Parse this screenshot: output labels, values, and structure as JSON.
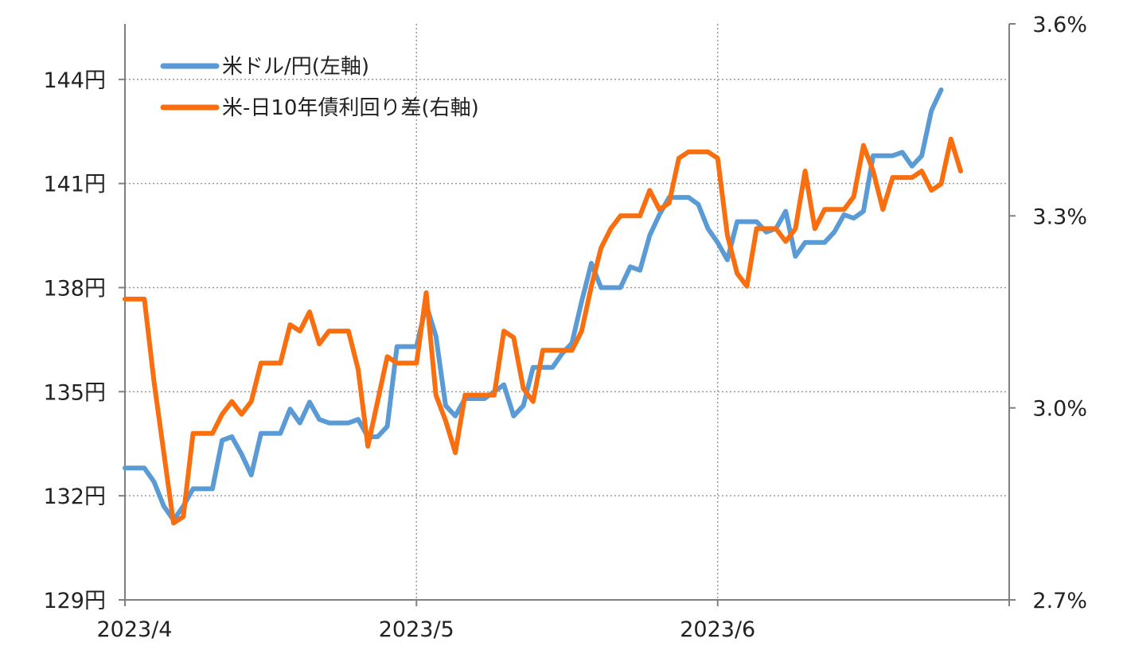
{
  "chart_data": {
    "type": "line",
    "x_ticks": [
      "2023/4",
      "2023/5",
      "2023/6"
    ],
    "x_tick_dates": [
      "2023-04-01",
      "2023-05-01",
      "2023-06-01"
    ],
    "x_range": [
      "2023-04-01",
      "2023-07-01"
    ],
    "y_left": {
      "ticks": [
        129,
        132,
        135,
        138,
        141,
        144
      ],
      "tick_labels": [
        "129円",
        "132円",
        "135円",
        "138円",
        "141円",
        "144円"
      ],
      "range": [
        129,
        145.6
      ]
    },
    "y_right": {
      "ticks": [
        2.7,
        3.0,
        3.3,
        3.6
      ],
      "tick_labels": [
        "2.7%",
        "3.0%",
        "3.3%",
        "3.6%"
      ],
      "range": [
        2.7,
        3.6
      ]
    },
    "grid": true,
    "legend_position": "top-left",
    "series": [
      {
        "name": "米ドル/円(左軸)",
        "axis": "left",
        "color": "#5B9BD5",
        "points": [
          [
            "2023-04-01",
            132.8
          ],
          [
            "2023-04-02",
            132.8
          ],
          [
            "2023-04-03",
            132.8
          ],
          [
            "2023-04-04",
            132.4
          ],
          [
            "2023-04-05",
            131.7
          ],
          [
            "2023-04-06",
            131.3
          ],
          [
            "2023-04-07",
            131.7
          ],
          [
            "2023-04-08",
            132.2
          ],
          [
            "2023-04-09",
            132.2
          ],
          [
            "2023-04-10",
            132.2
          ],
          [
            "2023-04-11",
            133.6
          ],
          [
            "2023-04-12",
            133.7
          ],
          [
            "2023-04-13",
            133.2
          ],
          [
            "2023-04-14",
            132.6
          ],
          [
            "2023-04-15",
            133.8
          ],
          [
            "2023-04-16",
            133.8
          ],
          [
            "2023-04-17",
            133.8
          ],
          [
            "2023-04-18",
            134.5
          ],
          [
            "2023-04-19",
            134.1
          ],
          [
            "2023-04-20",
            134.7
          ],
          [
            "2023-04-21",
            134.2
          ],
          [
            "2023-04-22",
            134.1
          ],
          [
            "2023-04-23",
            134.1
          ],
          [
            "2023-04-24",
            134.1
          ],
          [
            "2023-04-25",
            134.2
          ],
          [
            "2023-04-26",
            133.7
          ],
          [
            "2023-04-27",
            133.7
          ],
          [
            "2023-04-28",
            134.0
          ],
          [
            "2023-04-29",
            136.3
          ],
          [
            "2023-04-30",
            136.3
          ],
          [
            "2023-05-01",
            136.3
          ],
          [
            "2023-05-02",
            137.5
          ],
          [
            "2023-05-03",
            136.6
          ],
          [
            "2023-05-04",
            134.6
          ],
          [
            "2023-05-05",
            134.3
          ],
          [
            "2023-05-06",
            134.8
          ],
          [
            "2023-05-07",
            134.8
          ],
          [
            "2023-05-08",
            134.8
          ],
          [
            "2023-05-09",
            135.0
          ],
          [
            "2023-05-10",
            135.2
          ],
          [
            "2023-05-11",
            134.3
          ],
          [
            "2023-05-12",
            134.6
          ],
          [
            "2023-05-13",
            135.7
          ],
          [
            "2023-05-14",
            135.7
          ],
          [
            "2023-05-15",
            135.7
          ],
          [
            "2023-05-16",
            136.1
          ],
          [
            "2023-05-17",
            136.4
          ],
          [
            "2023-05-18",
            137.6
          ],
          [
            "2023-05-19",
            138.7
          ],
          [
            "2023-05-20",
            138.0
          ],
          [
            "2023-05-21",
            138.0
          ],
          [
            "2023-05-22",
            138.0
          ],
          [
            "2023-05-23",
            138.6
          ],
          [
            "2023-05-24",
            138.5
          ],
          [
            "2023-05-25",
            139.5
          ],
          [
            "2023-05-26",
            140.1
          ],
          [
            "2023-05-27",
            140.6
          ],
          [
            "2023-05-28",
            140.6
          ],
          [
            "2023-05-29",
            140.6
          ],
          [
            "2023-05-30",
            140.4
          ],
          [
            "2023-05-31",
            139.7
          ],
          [
            "2023-06-01",
            139.3
          ],
          [
            "2023-06-02",
            138.8
          ],
          [
            "2023-06-03",
            139.9
          ],
          [
            "2023-06-04",
            139.9
          ],
          [
            "2023-06-05",
            139.9
          ],
          [
            "2023-06-06",
            139.6
          ],
          [
            "2023-06-07",
            139.7
          ],
          [
            "2023-06-08",
            140.2
          ],
          [
            "2023-06-09",
            138.9
          ],
          [
            "2023-06-10",
            139.3
          ],
          [
            "2023-06-11",
            139.3
          ],
          [
            "2023-06-12",
            139.3
          ],
          [
            "2023-06-13",
            139.6
          ],
          [
            "2023-06-14",
            140.1
          ],
          [
            "2023-06-15",
            140.0
          ],
          [
            "2023-06-16",
            140.2
          ],
          [
            "2023-06-17",
            141.8
          ],
          [
            "2023-06-18",
            141.8
          ],
          [
            "2023-06-19",
            141.8
          ],
          [
            "2023-06-20",
            141.9
          ],
          [
            "2023-06-21",
            141.5
          ],
          [
            "2023-06-22",
            141.8
          ],
          [
            "2023-06-23",
            143.1
          ],
          [
            "2023-06-24",
            143.7
          ]
        ]
      },
      {
        "name": "米-日10年債利回り差(右軸)",
        "axis": "right",
        "color": "#F96E0F",
        "points": [
          [
            "2023-04-01",
            3.17
          ],
          [
            "2023-04-02",
            3.17
          ],
          [
            "2023-04-03",
            3.17
          ],
          [
            "2023-04-04",
            3.04
          ],
          [
            "2023-04-05",
            2.93
          ],
          [
            "2023-04-06",
            2.82
          ],
          [
            "2023-04-07",
            2.83
          ],
          [
            "2023-04-08",
            2.96
          ],
          [
            "2023-04-09",
            2.96
          ],
          [
            "2023-04-10",
            2.96
          ],
          [
            "2023-04-11",
            2.99
          ],
          [
            "2023-04-12",
            3.01
          ],
          [
            "2023-04-13",
            2.99
          ],
          [
            "2023-04-14",
            3.01
          ],
          [
            "2023-04-15",
            3.07
          ],
          [
            "2023-04-16",
            3.07
          ],
          [
            "2023-04-17",
            3.07
          ],
          [
            "2023-04-18",
            3.13
          ],
          [
            "2023-04-19",
            3.12
          ],
          [
            "2023-04-20",
            3.15
          ],
          [
            "2023-04-21",
            3.1
          ],
          [
            "2023-04-22",
            3.12
          ],
          [
            "2023-04-23",
            3.12
          ],
          [
            "2023-04-24",
            3.12
          ],
          [
            "2023-04-25",
            3.06
          ],
          [
            "2023-04-26",
            2.94
          ],
          [
            "2023-04-27",
            3.01
          ],
          [
            "2023-04-28",
            3.08
          ],
          [
            "2023-04-29",
            3.07
          ],
          [
            "2023-04-30",
            3.07
          ],
          [
            "2023-05-01",
            3.07
          ],
          [
            "2023-05-02",
            3.18
          ],
          [
            "2023-05-03",
            3.02
          ],
          [
            "2023-05-04",
            2.98
          ],
          [
            "2023-05-05",
            2.93
          ],
          [
            "2023-05-06",
            3.02
          ],
          [
            "2023-05-07",
            3.02
          ],
          [
            "2023-05-08",
            3.02
          ],
          [
            "2023-05-09",
            3.02
          ],
          [
            "2023-05-10",
            3.12
          ],
          [
            "2023-05-11",
            3.11
          ],
          [
            "2023-05-12",
            3.03
          ],
          [
            "2023-05-13",
            3.01
          ],
          [
            "2023-05-14",
            3.09
          ],
          [
            "2023-05-15",
            3.09
          ],
          [
            "2023-05-16",
            3.09
          ],
          [
            "2023-05-17",
            3.09
          ],
          [
            "2023-05-18",
            3.12
          ],
          [
            "2023-05-19",
            3.19
          ],
          [
            "2023-05-20",
            3.25
          ],
          [
            "2023-05-21",
            3.28
          ],
          [
            "2023-05-22",
            3.3
          ],
          [
            "2023-05-23",
            3.3
          ],
          [
            "2023-05-24",
            3.3
          ],
          [
            "2023-05-25",
            3.34
          ],
          [
            "2023-05-26",
            3.31
          ],
          [
            "2023-05-27",
            3.32
          ],
          [
            "2023-05-28",
            3.39
          ],
          [
            "2023-05-29",
            3.4
          ],
          [
            "2023-05-30",
            3.4
          ],
          [
            "2023-05-31",
            3.4
          ],
          [
            "2023-06-01",
            3.39
          ],
          [
            "2023-06-02",
            3.27
          ],
          [
            "2023-06-03",
            3.21
          ],
          [
            "2023-06-04",
            3.19
          ],
          [
            "2023-06-05",
            3.28
          ],
          [
            "2023-06-06",
            3.28
          ],
          [
            "2023-06-07",
            3.28
          ],
          [
            "2023-06-08",
            3.26
          ],
          [
            "2023-06-09",
            3.28
          ],
          [
            "2023-06-10",
            3.37
          ],
          [
            "2023-06-11",
            3.28
          ],
          [
            "2023-06-12",
            3.31
          ],
          [
            "2023-06-13",
            3.31
          ],
          [
            "2023-06-14",
            3.31
          ],
          [
            "2023-06-15",
            3.33
          ],
          [
            "2023-06-16",
            3.41
          ],
          [
            "2023-06-17",
            3.37
          ],
          [
            "2023-06-18",
            3.31
          ],
          [
            "2023-06-19",
            3.36
          ],
          [
            "2023-06-20",
            3.36
          ],
          [
            "2023-06-21",
            3.36
          ],
          [
            "2023-06-22",
            3.37
          ],
          [
            "2023-06-23",
            3.34
          ],
          [
            "2023-06-24",
            3.35
          ],
          [
            "2023-06-25",
            3.42
          ],
          [
            "2023-06-26",
            3.37
          ]
        ]
      }
    ]
  }
}
